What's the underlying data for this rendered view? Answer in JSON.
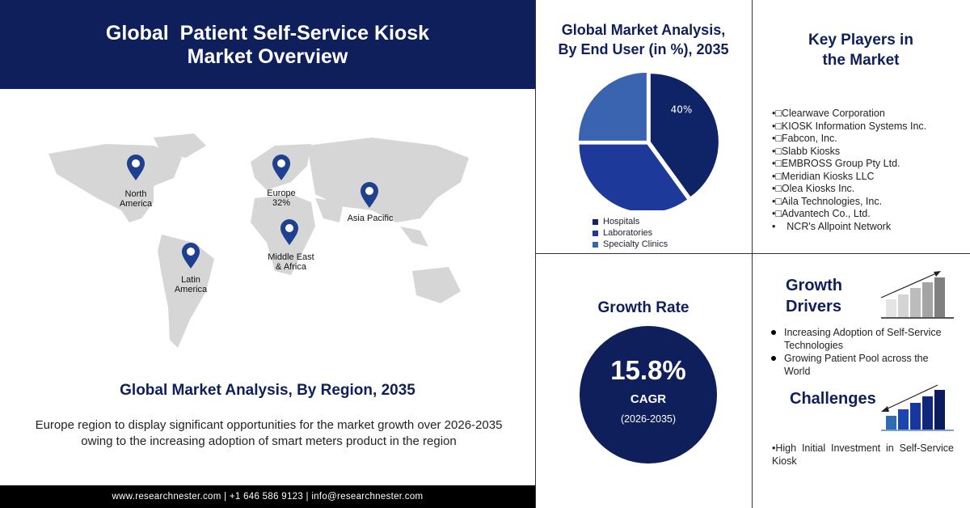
{
  "header": {
    "title_line1": "Global  Patient Self-Service Kiosk",
    "title_line2": "Market Overview"
  },
  "map": {
    "regions": [
      {
        "name": "North America",
        "line1": "North",
        "line2": "America"
      },
      {
        "name": "Europe",
        "line1": "Europe",
        "line2": "32%"
      },
      {
        "name": "Asia Pacific",
        "line1": "Asia Pacific",
        "line2": ""
      },
      {
        "name": "Middle East & Africa",
        "line1": "Middle East",
        "line2": "& Africa"
      },
      {
        "name": "Latin America",
        "line1": "Latin",
        "line2": "America"
      }
    ],
    "pin_color": "#1f3f8f"
  },
  "region_title": "Global Market Analysis, By Region, 2035",
  "region_desc": "Europe region to display significant opportunities for the market growth over 2026-2035 owing to the increasing adoption of smart meters product in the region",
  "footer": "www.researchnester.com | +1 646 586 9123 | info@researchnester.com",
  "end_user": {
    "title_line1": "Global Market Analysis,",
    "title_line2": "By End User (in %), 2035"
  },
  "chart_data": {
    "type": "pie",
    "title": "Global Market Analysis, By End User (in %), 2035",
    "categories": [
      "Hospitals",
      "Laboratories",
      "Specialty Clinics"
    ],
    "values": [
      40,
      35,
      25
    ],
    "data_labels": [
      "40%",
      "",
      ""
    ],
    "colors": [
      "#0e2466",
      "#1d3a9a",
      "#3a64b0"
    ],
    "legend": "bottom"
  },
  "key_players": {
    "title_line1": "Key Players in",
    "title_line2": "the Market",
    "items": [
      "•□Clearwave Corporation",
      "•□KIOSK Information Systems Inc.",
      "•□Fabcon, Inc.",
      "•□Slabb Kiosks",
      "•□EMBROSS Group Pty Ltd.",
      "•□Meridian Kiosks LLC",
      "•□Olea Kiosks Inc.",
      "•□Aila Technologies, Inc.",
      "•□Advantech Co., Ltd.",
      "•    NCR's Allpoint Network"
    ]
  },
  "growth_rate": {
    "title": "Growth Rate",
    "value": "15.8%",
    "label": "CAGR",
    "period": "(2026-2035)"
  },
  "drivers": {
    "title_line1": "Growth",
    "title_line2": "Drivers",
    "items": [
      "Increasing Adoption of Self-Service Technologies",
      "Growing Patient Pool across the World"
    ]
  },
  "challenges": {
    "title": "Challenges",
    "items": [
      "•High Initial Investment in Self-Service Kiosk"
    ]
  }
}
